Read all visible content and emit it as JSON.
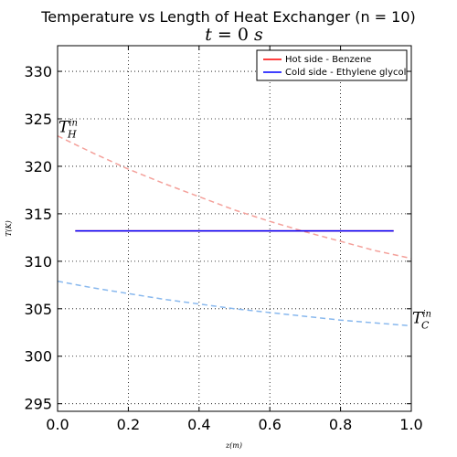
{
  "chart_data": {
    "type": "line",
    "title": "Temperature vs Length of Heat Exchanger (n = 10)",
    "subtitle_var": "t",
    "subtitle_eq": " = 0 ",
    "subtitle_unit": "s",
    "xlabel": "z(m)",
    "ylabel": "T(K)",
    "xlim": [
      0.0,
      1.0
    ],
    "ylim": [
      294.2,
      332.7
    ],
    "x_ticks": [
      0.0,
      0.2,
      0.4,
      0.6,
      0.8,
      1.0
    ],
    "x_tick_labels": [
      "0.0",
      "0.2",
      "0.4",
      "0.6",
      "0.8",
      "1.0"
    ],
    "y_ticks": [
      295,
      300,
      305,
      310,
      315,
      320,
      325,
      330
    ],
    "y_tick_labels": [
      "295",
      "300",
      "305",
      "310",
      "315",
      "320",
      "325",
      "330"
    ],
    "grid": true,
    "legend_placement": "top-right",
    "series": [
      {
        "name": "Hot side - Benzene",
        "color": "#ff0000",
        "style": "solid",
        "x": [
          0.05,
          0.95
        ],
        "y": [
          313.2,
          313.2
        ]
      },
      {
        "name": "Cold side - Ethylene glycol",
        "color": "#0000ff",
        "style": "solid",
        "x": [
          0.05,
          0.95
        ],
        "y": [
          313.2,
          313.2
        ]
      }
    ],
    "reference_curves": [
      {
        "color": "#f4a09a",
        "style": "dashed",
        "x": [
          0.0,
          0.1,
          0.2,
          0.3,
          0.4,
          0.5,
          0.6,
          0.7,
          0.8,
          0.9,
          1.0
        ],
        "y": [
          323.2,
          321.4,
          319.7,
          318.2,
          316.8,
          315.4,
          314.2,
          313.1,
          312.1,
          311.1,
          310.3
        ]
      },
      {
        "color": "#88b8ee",
        "style": "dashed",
        "x": [
          0.0,
          0.1,
          0.2,
          0.3,
          0.4,
          0.5,
          0.6,
          0.7,
          0.8,
          0.9,
          1.0
        ],
        "y": [
          307.9,
          307.2,
          306.6,
          306.0,
          305.5,
          305.0,
          304.6,
          304.2,
          303.8,
          303.5,
          303.2
        ]
      }
    ],
    "annotations": [
      {
        "base": "T",
        "sub": "H",
        "sup": "in",
        "x": 0.0,
        "y": 323.6
      },
      {
        "base": "T",
        "sub": "C",
        "sup": "in",
        "x": 1.0,
        "y": 303.5
      }
    ]
  }
}
